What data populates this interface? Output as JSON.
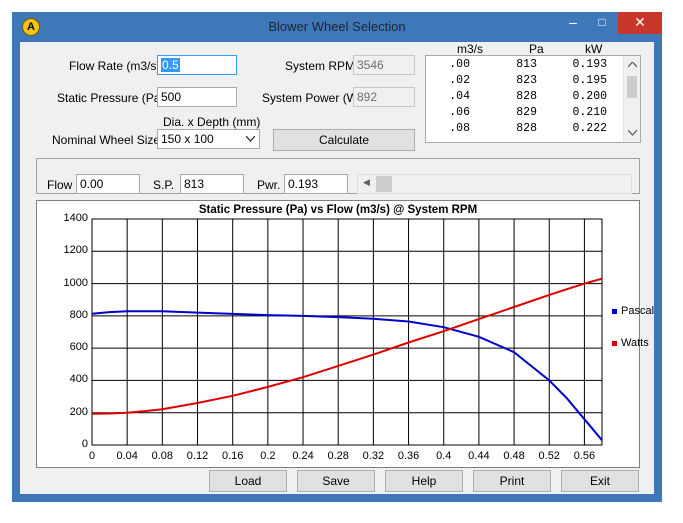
{
  "window": {
    "title": "Blower Wheel Selection",
    "minimize_glyph": "–",
    "maximize_glyph": "□",
    "close_glyph": "✕",
    "app_icon_glyph": "A"
  },
  "inputs": {
    "flow_rate_label": "Flow  Rate (m3/s)",
    "flow_rate_value": "0.5",
    "static_pressure_label": "Static  Pressure (Pa)",
    "static_pressure_value": "500",
    "dims_label": "Dia.  x  Depth (mm)",
    "nominal_size_label": "Nominal  Wheel  Size",
    "nominal_size_value": "150 x 100",
    "system_rpm_label": "System  RPM",
    "system_rpm_value": "3546",
    "system_power_label": "System Power (W)",
    "system_power_value": "892",
    "calculate_label": "Calculate"
  },
  "table": {
    "headers": [
      "m3/s",
      "Pa",
      "kW"
    ],
    "rows": [
      [
        ".00",
        "813",
        "0.193"
      ],
      [
        ".02",
        "823",
        "0.195"
      ],
      [
        ".04",
        "828",
        "0.200"
      ],
      [
        ".06",
        "829",
        "0.210"
      ],
      [
        ".08",
        "828",
        "0.222"
      ]
    ]
  },
  "readout": {
    "flow_label": "Flow",
    "flow_value": "0.00",
    "sp_label": "S.P.",
    "sp_value": "813",
    "pwr_label": "Pwr.",
    "pwr_value": "0.193",
    "scroll_left_glyph": "◀",
    "slider_position": 0.0
  },
  "chart_data": {
    "type": "line",
    "title": "Static Pressure (Pa) vs Flow (m3/s) @ System RPM",
    "xlim": [
      0,
      0.58
    ],
    "ylim": [
      0,
      1400
    ],
    "x_ticks": [
      "0",
      "0.04",
      "0.08",
      "0.12",
      "0.16",
      "0.2",
      "0.24",
      "0.28",
      "0.32",
      "0.36",
      "0.4",
      "0.44",
      "0.48",
      "0.52",
      "0.56"
    ],
    "y_ticks": [
      "0",
      "200",
      "400",
      "600",
      "800",
      "1000",
      "1200",
      "1400"
    ],
    "grid": true,
    "legend_position": "right",
    "series": [
      {
        "name": "Pascal",
        "color": "#0000cc",
        "x": [
          0,
          0.02,
          0.04,
          0.06,
          0.08,
          0.12,
          0.16,
          0.2,
          0.24,
          0.28,
          0.32,
          0.36,
          0.4,
          0.44,
          0.48,
          0.52,
          0.54,
          0.56,
          0.58
        ],
        "y": [
          813,
          823,
          828,
          829,
          828,
          820,
          812,
          805,
          800,
          792,
          782,
          765,
          730,
          670,
          575,
          400,
          290,
          160,
          30
        ]
      },
      {
        "name": "Watts",
        "color": "#dd0000",
        "x": [
          0,
          0.02,
          0.04,
          0.06,
          0.08,
          0.12,
          0.16,
          0.2,
          0.24,
          0.28,
          0.32,
          0.36,
          0.4,
          0.44,
          0.48,
          0.52,
          0.56,
          0.58
        ],
        "y": [
          193,
          195,
          200,
          210,
          222,
          260,
          305,
          360,
          420,
          490,
          560,
          635,
          705,
          780,
          855,
          930,
          1000,
          1030
        ]
      }
    ]
  },
  "footer": {
    "load": "Load",
    "save": "Save",
    "help": "Help",
    "print": "Print",
    "exit": "Exit"
  }
}
